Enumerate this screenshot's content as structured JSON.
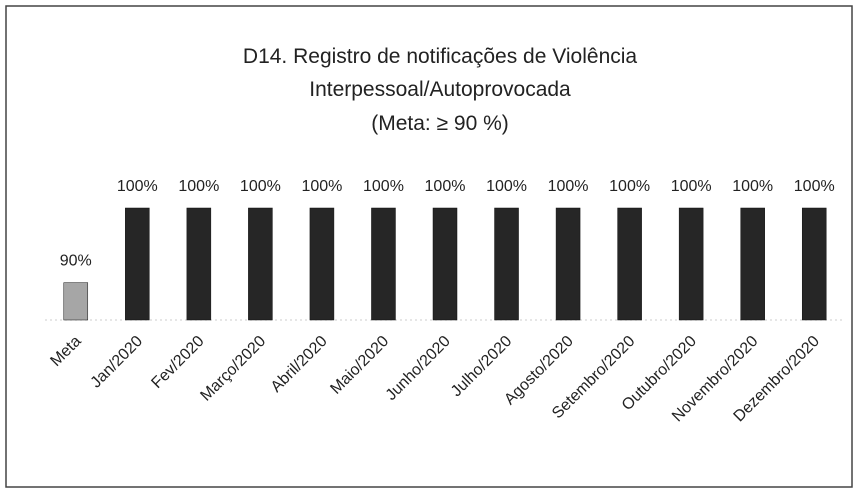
{
  "chart_data": {
    "type": "bar",
    "title": "D14. Registro de notificações de Violência Interpessoal/Autoprovocada",
    "subtitle": "(Meta: ≥ 90 %)",
    "categories": [
      "Meta",
      "Jan/2020",
      "Fev/2020",
      "Março/2020",
      "Abril/2020",
      "Maio/2020",
      "Junho/2020",
      "Julho/2020",
      "Agosto/2020",
      "Setembro/2020",
      "Outubro/2020",
      "Novembro/2020",
      "Dezembro/2020"
    ],
    "values": [
      90,
      100,
      100,
      100,
      100,
      100,
      100,
      100,
      100,
      100,
      100,
      100,
      100
    ],
    "value_labels": [
      "90%",
      "100%",
      "100%",
      "100%",
      "100%",
      "100%",
      "100%",
      "100%",
      "100%",
      "100%",
      "100%",
      "100%",
      "100%"
    ],
    "colors": [
      "#a6a6a6",
      "#262626",
      "#262626",
      "#262626",
      "#262626",
      "#262626",
      "#262626",
      "#262626",
      "#262626",
      "#262626",
      "#262626",
      "#262626",
      "#262626"
    ],
    "ylim": [
      85,
      100
    ],
    "grid": false
  }
}
